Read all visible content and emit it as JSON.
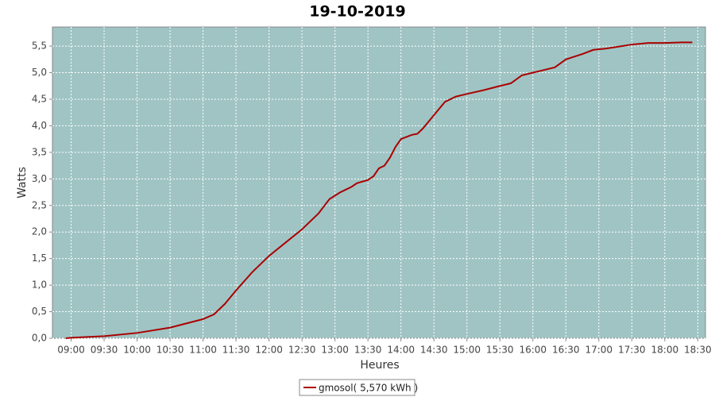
{
  "chart_data": {
    "type": "line",
    "title": "19-10-2019",
    "x_label": "Heures",
    "y_label": "Watts",
    "x": [
      "08:55",
      "09:00",
      "09:30",
      "10:00",
      "10:30",
      "11:00",
      "11:10",
      "11:20",
      "11:30",
      "11:45",
      "12:00",
      "12:15",
      "12:30",
      "12:45",
      "12:55",
      "13:05",
      "13:15",
      "13:20",
      "13:30",
      "13:35",
      "13:40",
      "13:45",
      "13:50",
      "13:55",
      "14:00",
      "14:10",
      "14:15",
      "14:20",
      "14:30",
      "14:40",
      "14:50",
      "15:00",
      "15:15",
      "15:30",
      "15:40",
      "15:50",
      "16:00",
      "16:10",
      "16:20",
      "16:30",
      "16:45",
      "16:55",
      "17:05",
      "17:15",
      "17:30",
      "17:45",
      "18:00",
      "18:15",
      "18:25"
    ],
    "series": [
      {
        "name": "gmosol( 5,570 kWh )",
        "color": "#aa0000",
        "values": [
          0.0,
          0.01,
          0.04,
          0.1,
          0.2,
          0.36,
          0.45,
          0.65,
          0.9,
          1.25,
          1.55,
          1.8,
          2.05,
          2.35,
          2.62,
          2.75,
          2.85,
          2.92,
          2.98,
          3.05,
          3.2,
          3.25,
          3.4,
          3.6,
          3.75,
          3.83,
          3.85,
          3.95,
          4.2,
          4.45,
          4.55,
          4.6,
          4.67,
          4.75,
          4.8,
          4.95,
          5.0,
          5.05,
          5.1,
          5.25,
          5.35,
          5.43,
          5.45,
          5.48,
          5.53,
          5.56,
          5.56,
          5.57,
          5.57
        ]
      }
    ],
    "xlim": [
      "08:43",
      "18:37"
    ],
    "xticks": [
      "09:00",
      "09:30",
      "10:00",
      "10:30",
      "11:00",
      "11:30",
      "12:00",
      "12:30",
      "13:00",
      "13:30",
      "14:00",
      "14:30",
      "15:00",
      "15:30",
      "16:00",
      "16:30",
      "17:00",
      "17:30",
      "18:00",
      "18:30"
    ],
    "ylim": [
      0,
      5.86
    ],
    "yticks": [
      {
        "value": 0,
        "label": "0,0"
      },
      {
        "value": 0.5,
        "label": "0,5"
      },
      {
        "value": 1,
        "label": "1,0"
      },
      {
        "value": 1.5,
        "label": "1,5"
      },
      {
        "value": 2,
        "label": "2,0"
      },
      {
        "value": 2.5,
        "label": "2,5"
      },
      {
        "value": 3,
        "label": "3,0"
      },
      {
        "value": 3.5,
        "label": "3,5"
      },
      {
        "value": 4,
        "label": "4,0"
      },
      {
        "value": 4.5,
        "label": "4,5"
      },
      {
        "value": 5,
        "label": "5,0"
      },
      {
        "value": 5.5,
        "label": "5,5"
      }
    ],
    "grid": true,
    "plot_background": "#a0c4c4",
    "legend_position": "bottom"
  }
}
